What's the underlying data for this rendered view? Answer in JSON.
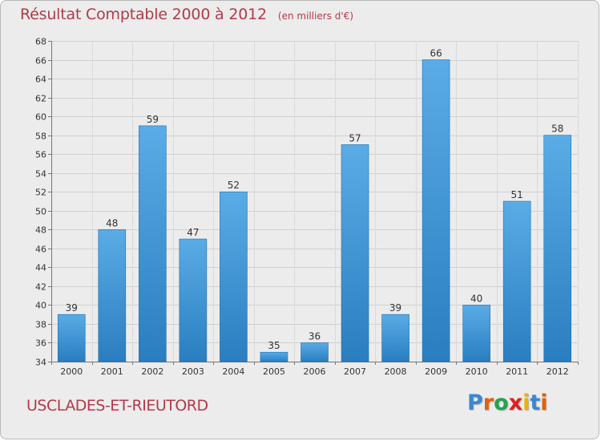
{
  "header": {
    "title": "Résultat Comptable 2000 à 2012",
    "subtitle": "(en milliers d'€)"
  },
  "footer": {
    "commune": "USCLADES-ET-RIEUTORD",
    "brand": "Proxiti"
  },
  "colors": {
    "title": "#b23a4a",
    "bar_light": "#5aace6",
    "bar_dark": "#2a7ec0",
    "background": "#ececec",
    "brand_letters": [
      "#3a87d0",
      "#e06010",
      "#2aa050",
      "#e02020",
      "#f0b000",
      "#3a87d0",
      "#e06010"
    ]
  },
  "chart_data": {
    "type": "bar",
    "title": "Résultat Comptable 2000 à 2012",
    "subtitle": "(en milliers d'€)",
    "xlabel": "",
    "ylabel": "",
    "categories": [
      "2000",
      "2001",
      "2002",
      "2003",
      "2004",
      "2005",
      "2006",
      "2007",
      "2008",
      "2009",
      "2010",
      "2011",
      "2012"
    ],
    "values": [
      39,
      48,
      59,
      47,
      52,
      35,
      36,
      57,
      39,
      66,
      40,
      51,
      58
    ],
    "ylim": [
      34,
      68
    ],
    "yticks": [
      34,
      36,
      38,
      40,
      42,
      44,
      46,
      48,
      50,
      52,
      54,
      56,
      58,
      60,
      62,
      64,
      66,
      68
    ],
    "grid": true,
    "legend": "none"
  }
}
